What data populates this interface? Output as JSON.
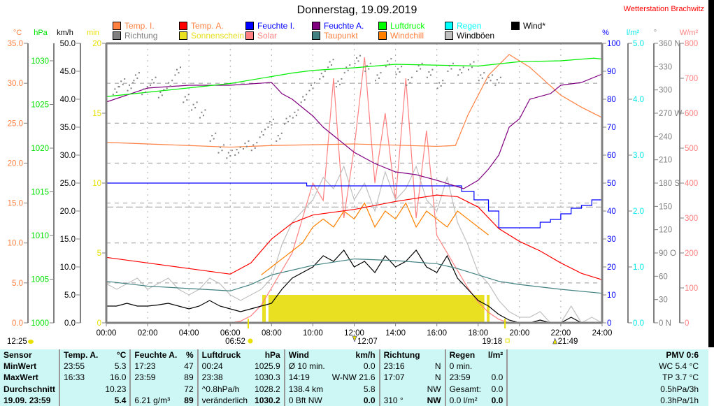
{
  "header": {
    "title": "Donnerstag, 19.09.2019",
    "station": "Wetterstation Brachwitz"
  },
  "legend": [
    {
      "label": "Temp. I.",
      "box": "#ff8040",
      "text": "#ff8040"
    },
    {
      "label": "Temp. A.",
      "box": "#ff0000",
      "text": "#ff8040"
    },
    {
      "label": "Feuchte I.",
      "box": "#0000ff",
      "text": "#0000ff"
    },
    {
      "label": "Feuchte A.",
      "box": "#800080",
      "text": "#0000ff"
    },
    {
      "label": "Luftdruck",
      "box": "#00ff00",
      "text": "#00ff00"
    },
    {
      "label": "Regen",
      "box": "#00ffff",
      "text": "#00ffff"
    },
    {
      "label": "Wind*",
      "box": "#000000",
      "text": "#000000"
    },
    {
      "label": "Richtung",
      "box": "#808080",
      "text": "#808080"
    },
    {
      "label": "Sonnenschein",
      "box": "#e8e020",
      "text": "#e8e020"
    },
    {
      "label": "Solar",
      "box": "#ff8080",
      "text": "#ff8080"
    },
    {
      "label": "Taupunkt",
      "box": "#408080",
      "text": "#ff8040"
    },
    {
      "label": "Windchill",
      "box": "#ff8000",
      "text": "#ff8040"
    },
    {
      "label": "Windböen",
      "box": "#c0c0c0",
      "text": "#000000"
    }
  ],
  "chart_data": {
    "type": "line",
    "title": "Donnerstag, 19.09.2019",
    "x_ticks": [
      "00:00",
      "02:00",
      "04:00",
      "06:00",
      "08:00",
      "10:00",
      "12:00",
      "14:00",
      "16:00",
      "18:00",
      "20:00",
      "22:00",
      "24:00"
    ],
    "xlim": [
      0,
      24
    ],
    "axes": {
      "temp": {
        "unit": "°C",
        "range": [
          0,
          35
        ],
        "ticks": [
          "0.0",
          "5.0",
          "10.0",
          "15.0",
          "20.0",
          "25.0",
          "30.0",
          "35.0"
        ],
        "color": "#ff8040"
      },
      "hpa": {
        "unit": "hPa",
        "range": [
          1000,
          1032
        ],
        "ticks": [
          "1000",
          "1005",
          "1010",
          "1015",
          "1020",
          "1025",
          "1030"
        ],
        "color": "#00e000"
      },
      "kmh": {
        "unit": "km/h",
        "range": [
          0,
          50
        ],
        "ticks": [
          "0.0",
          "5.0",
          "10.0",
          "15.0",
          "20.0",
          "25.0",
          "30.0",
          "35.0",
          "40.0",
          "45.0",
          "50.0"
        ],
        "color": "#000000"
      },
      "min": {
        "unit": "min",
        "range": [
          0,
          20
        ],
        "ticks": [
          "0",
          "5",
          "10",
          "15",
          "20"
        ],
        "color": "#e8e000"
      },
      "pct": {
        "unit": "%",
        "range": [
          0,
          100
        ],
        "ticks": [
          "0",
          "10",
          "20",
          "30",
          "40",
          "50",
          "60",
          "70",
          "80",
          "90",
          "100"
        ],
        "color": "#0000ff"
      },
      "rain": {
        "unit": "l/m²",
        "range": [
          0,
          5
        ],
        "ticks": [
          "0.0",
          "1.0",
          "2.0",
          "3.0",
          "4.0",
          "5.0"
        ],
        "color": "#00e8e8"
      },
      "deg": {
        "unit": "°",
        "range": [
          0,
          360
        ],
        "ticks": [
          "0   N",
          "30",
          "60",
          "90  O",
          "120",
          "150",
          "180 S",
          "210",
          "240",
          "270 W",
          "300",
          "330",
          "360 N"
        ],
        "color": "#808080"
      },
      "solar": {
        "unit": "W/m²",
        "range": [
          0,
          800
        ],
        "ticks": [
          "0",
          "100",
          "200",
          "300",
          "400",
          "500",
          "600",
          "700",
          "800"
        ],
        "color": "#ff8080"
      }
    },
    "series": [
      {
        "name": "Sonnenschein",
        "axis": "min",
        "kind": "bars",
        "color": "#e8e020",
        "intervals": [
          [
            7.55,
            7.72
          ],
          [
            7.85,
            18.3
          ],
          [
            18.42,
            18.55
          ]
        ],
        "value": 2
      },
      {
        "name": "Solar",
        "axis": "solar",
        "kind": "line",
        "color": "#ff8080",
        "step": 0.5,
        "values": [
          0,
          0,
          0,
          0,
          0,
          0,
          0,
          0,
          0,
          0,
          0,
          0,
          0,
          5,
          20,
          50,
          100,
          150,
          200,
          300,
          400,
          350,
          700,
          300,
          500,
          760,
          400,
          600,
          350,
          700,
          300,
          550,
          250,
          200,
          150,
          100,
          60,
          30,
          10,
          0,
          0,
          0,
          0,
          0,
          0,
          0,
          0,
          0,
          0
        ]
      },
      {
        "name": "Windböen",
        "axis": "kmh",
        "kind": "line",
        "color": "#c0c0c0",
        "step": 0.5,
        "values": [
          7,
          6,
          7,
          8,
          6,
          7,
          8,
          6,
          5,
          6,
          8,
          7,
          5,
          4,
          5,
          6,
          8,
          14,
          18,
          20,
          22,
          26,
          24,
          28,
          22,
          25,
          20,
          27,
          22,
          24,
          28,
          22,
          20,
          26,
          18,
          14,
          9,
          7,
          4,
          2,
          1,
          1,
          2,
          0,
          0,
          3,
          0,
          1,
          0
        ]
      },
      {
        "name": "Wind*",
        "axis": "kmh",
        "kind": "line",
        "color": "#000000",
        "step": 0.5,
        "values": [
          3,
          3,
          3.5,
          3,
          3,
          3.2,
          3.5,
          3,
          2.5,
          3,
          4,
          3,
          2.5,
          2,
          2.5,
          3,
          3.5,
          6,
          8,
          9,
          10,
          12,
          11,
          13,
          10,
          11,
          9,
          12,
          10,
          11,
          13,
          10,
          9,
          12,
          8,
          6,
          4,
          3,
          1.5,
          0.5,
          0,
          0,
          0.5,
          0,
          0,
          1,
          0,
          0,
          0
        ]
      },
      {
        "name": "Taupunkt",
        "axis": "temp",
        "kind": "line",
        "color": "#408080",
        "points": [
          [
            0,
            5.2
          ],
          [
            2,
            4.6
          ],
          [
            4,
            4.3
          ],
          [
            6,
            4.0
          ],
          [
            7,
            4.8
          ],
          [
            8,
            6.0
          ],
          [
            10,
            7.2
          ],
          [
            12,
            8.0
          ],
          [
            14,
            7.8
          ],
          [
            16,
            7.4
          ],
          [
            17,
            6.8
          ],
          [
            18,
            6.0
          ],
          [
            19,
            5.2
          ],
          [
            20,
            4.8
          ],
          [
            22,
            4.2
          ],
          [
            24,
            3.7
          ]
        ]
      },
      {
        "name": "Windchill",
        "axis": "temp",
        "kind": "line",
        "color": "#ff8000",
        "start": 7.5,
        "step": 0.5,
        "values": [
          6,
          7,
          8,
          9,
          10,
          12,
          13,
          12,
          14,
          13,
          15,
          12,
          14,
          13,
          15,
          12,
          14,
          13,
          12,
          14,
          13,
          12,
          11
        ]
      },
      {
        "name": "Temp. A.",
        "axis": "temp",
        "kind": "line",
        "color": "#ff0000",
        "points": [
          [
            0,
            8.2
          ],
          [
            2,
            7.5
          ],
          [
            4,
            6.8
          ],
          [
            6,
            6.1
          ],
          [
            7,
            7.5
          ],
          [
            8,
            10.5
          ],
          [
            9,
            12.5
          ],
          [
            10,
            13.5
          ],
          [
            12,
            14.2
          ],
          [
            14,
            15.2
          ],
          [
            16,
            16.0
          ],
          [
            17,
            15.8
          ],
          [
            18,
            14.5
          ],
          [
            19,
            11.8
          ],
          [
            20,
            10.2
          ],
          [
            21,
            9.0
          ],
          [
            22,
            7.5
          ],
          [
            23,
            6.2
          ],
          [
            24,
            5.4
          ]
        ]
      },
      {
        "name": "Temp. I.",
        "axis": "temp",
        "kind": "line",
        "color": "#ff8040",
        "points": [
          [
            0,
            22.6
          ],
          [
            3,
            22.3
          ],
          [
            6,
            22.0
          ],
          [
            8,
            22.2
          ],
          [
            12,
            22.4
          ],
          [
            16,
            22.1
          ],
          [
            16.9,
            22.2
          ],
          [
            17.5,
            26
          ],
          [
            18.5,
            31
          ],
          [
            19.5,
            33.6
          ],
          [
            20.5,
            32
          ],
          [
            22,
            28.5
          ],
          [
            23,
            27
          ],
          [
            24,
            25.7
          ]
        ]
      },
      {
        "name": "Feuchte I.",
        "axis": "pct",
        "kind": "step",
        "color": "#0000ff",
        "points": [
          [
            0,
            50
          ],
          [
            9.7,
            49
          ],
          [
            16.5,
            49
          ],
          [
            17.2,
            47
          ],
          [
            17.8,
            44
          ],
          [
            18.5,
            40
          ],
          [
            19,
            34
          ],
          [
            20.5,
            34
          ],
          [
            21,
            36
          ],
          [
            21.5,
            37
          ],
          [
            22,
            39
          ],
          [
            22.5,
            41
          ],
          [
            23,
            42
          ],
          [
            23.5,
            44
          ],
          [
            24,
            44
          ]
        ]
      },
      {
        "name": "Feuchte A.",
        "axis": "pct",
        "kind": "line",
        "color": "#800080",
        "points": [
          [
            0,
            79
          ],
          [
            2,
            84
          ],
          [
            4,
            85
          ],
          [
            6,
            85
          ],
          [
            8,
            86
          ],
          [
            8.5,
            82
          ],
          [
            9,
            80
          ],
          [
            10,
            74
          ],
          [
            10.5,
            70
          ],
          [
            11,
            67
          ],
          [
            12,
            61
          ],
          [
            13,
            57
          ],
          [
            14,
            54
          ],
          [
            15,
            53
          ],
          [
            16,
            51
          ],
          [
            17.3,
            48
          ],
          [
            18,
            51
          ],
          [
            18.5,
            55
          ],
          [
            19,
            60
          ],
          [
            19.5,
            70
          ],
          [
            20,
            73
          ],
          [
            20.5,
            80
          ],
          [
            21.5,
            82
          ],
          [
            22,
            85
          ],
          [
            23,
            86
          ],
          [
            24,
            89
          ]
        ]
      },
      {
        "name": "Luftdruck",
        "axis": "hpa",
        "kind": "line",
        "color": "#00ee00",
        "points": [
          [
            0,
            1025.9
          ],
          [
            2,
            1026.4
          ],
          [
            4,
            1026.9
          ],
          [
            6,
            1027.4
          ],
          [
            8,
            1028.2
          ],
          [
            9,
            1028.6
          ],
          [
            10,
            1028.9
          ],
          [
            12,
            1029.2
          ],
          [
            14,
            1029.6
          ],
          [
            16,
            1029.5
          ],
          [
            18,
            1029.4
          ],
          [
            20,
            1029.9
          ],
          [
            22,
            1030.0
          ],
          [
            23.6,
            1030.3
          ],
          [
            24,
            1030.2
          ]
        ]
      },
      {
        "name": "Richtung",
        "axis": "deg",
        "kind": "dots",
        "color": "#808080",
        "points": [
          [
            0.3,
            300
          ],
          [
            0.6,
            310
          ],
          [
            1,
            305
          ],
          [
            1.3,
            318
          ],
          [
            1.7,
            300
          ],
          [
            2.1,
            312
          ],
          [
            2.5,
            296
          ],
          [
            2.9,
            308
          ],
          [
            3.3,
            325
          ],
          [
            3.7,
            290
          ],
          [
            4.1,
            280
          ],
          [
            4.5,
            270
          ],
          [
            5,
            240
          ],
          [
            5.4,
            225
          ],
          [
            5.8,
            218
          ],
          [
            6.2,
            222
          ],
          [
            6.6,
            230
          ],
          [
            7,
            228
          ],
          [
            7.4,
            245
          ],
          [
            7.8,
            258
          ],
          [
            8.2,
            240
          ],
          [
            8.6,
            262
          ],
          [
            9,
            270
          ],
          [
            9.4,
            290
          ],
          [
            9.8,
            305
          ],
          [
            10.3,
            320
          ],
          [
            10.7,
            335
          ],
          [
            11.1,
            310
          ],
          [
            11.5,
            328
          ],
          [
            12,
            340
          ],
          [
            12.5,
            330
          ],
          [
            13,
            318
          ],
          [
            13.5,
            336
          ],
          [
            14,
            326
          ],
          [
            14.5,
            312
          ],
          [
            15,
            330
          ],
          [
            15.5,
            322
          ],
          [
            16,
            308
          ],
          [
            16.5,
            330
          ],
          [
            17,
            325
          ],
          [
            17.5,
            332
          ],
          [
            18,
            318
          ],
          [
            18.4,
            315
          ],
          [
            18.8,
            312
          ]
        ]
      }
    ],
    "reference_line": {
      "axis": "temp",
      "value": 14.5
    }
  },
  "markers": {
    "now": "12:25",
    "sunrise": "06:52",
    "noon": "12:07",
    "sunset": "19:18",
    "moon": "21:49"
  },
  "stats": {
    "header": [
      "Sensor",
      "Temp. A.",
      "°C",
      "Feuchte A.",
      "%",
      "Luftdruck",
      "hPa",
      "Wind",
      "km/h",
      "Richtung",
      "",
      "Regen",
      "l/m²",
      "PMV 0:6"
    ],
    "rows": [
      [
        "MinWert",
        "23:55",
        "5.3",
        "17:23",
        "47",
        "00:24",
        "1025.9",
        "Ø 10 min.",
        "0.0",
        "23:16",
        "N",
        "0 min.",
        "",
        "WC 5.4 °C"
      ],
      [
        "MaxWert",
        "16:33",
        "16.0",
        "23:59",
        "89",
        "23:38",
        "1030.3",
        "14:19",
        "W-NW 21.6",
        "17:07",
        "N",
        "23:59",
        "0.0",
        "TP 3.7 °C"
      ],
      [
        "Durchschnitt",
        "",
        "10.23",
        "",
        "72",
        "^0.8hPa/h",
        "1028.2",
        "138.4 km",
        "5.8",
        "",
        "NW",
        "Gesamt:",
        "0.0",
        "0.5hPa/3h"
      ],
      [
        "19.09. 23:59",
        "",
        "5.4",
        "6.21 g/m³",
        "89",
        "veränderlich",
        "1030.2",
        "0 Bft NW",
        "0.0",
        "310 °",
        "NW",
        "0.0 l/m²",
        "0.0",
        "0.3hPa/1h"
      ]
    ]
  }
}
